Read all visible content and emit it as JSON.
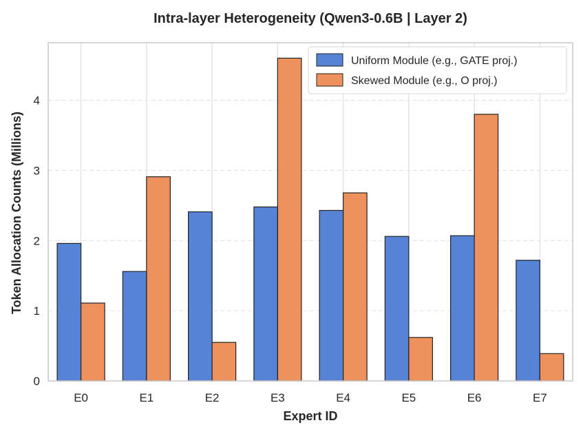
{
  "chart_data": {
    "type": "bar",
    "title": "Intra-layer Heterogeneity (Qwen3-0.6B | Layer 2)",
    "xlabel": "Expert ID",
    "ylabel": "Token Allocation Counts (Millions)",
    "categories": [
      "E0",
      "E1",
      "E2",
      "E3",
      "E4",
      "E5",
      "E6",
      "E7"
    ],
    "series": [
      {
        "name": "Uniform Module (e.g., GATE proj.)",
        "color": "#5783d6",
        "values": [
          1.96,
          1.56,
          2.41,
          2.48,
          2.43,
          2.06,
          2.07,
          1.72
        ]
      },
      {
        "name": "Skewed Module (e.g., O proj.)",
        "color": "#ee915c",
        "values": [
          1.11,
          2.91,
          0.55,
          4.6,
          2.68,
          0.62,
          3.8,
          0.39
        ]
      }
    ],
    "ylim": [
      0,
      4.82
    ],
    "yticks": [
      0,
      1,
      2,
      3,
      4
    ],
    "grid": true,
    "legend_position": "top-right"
  }
}
